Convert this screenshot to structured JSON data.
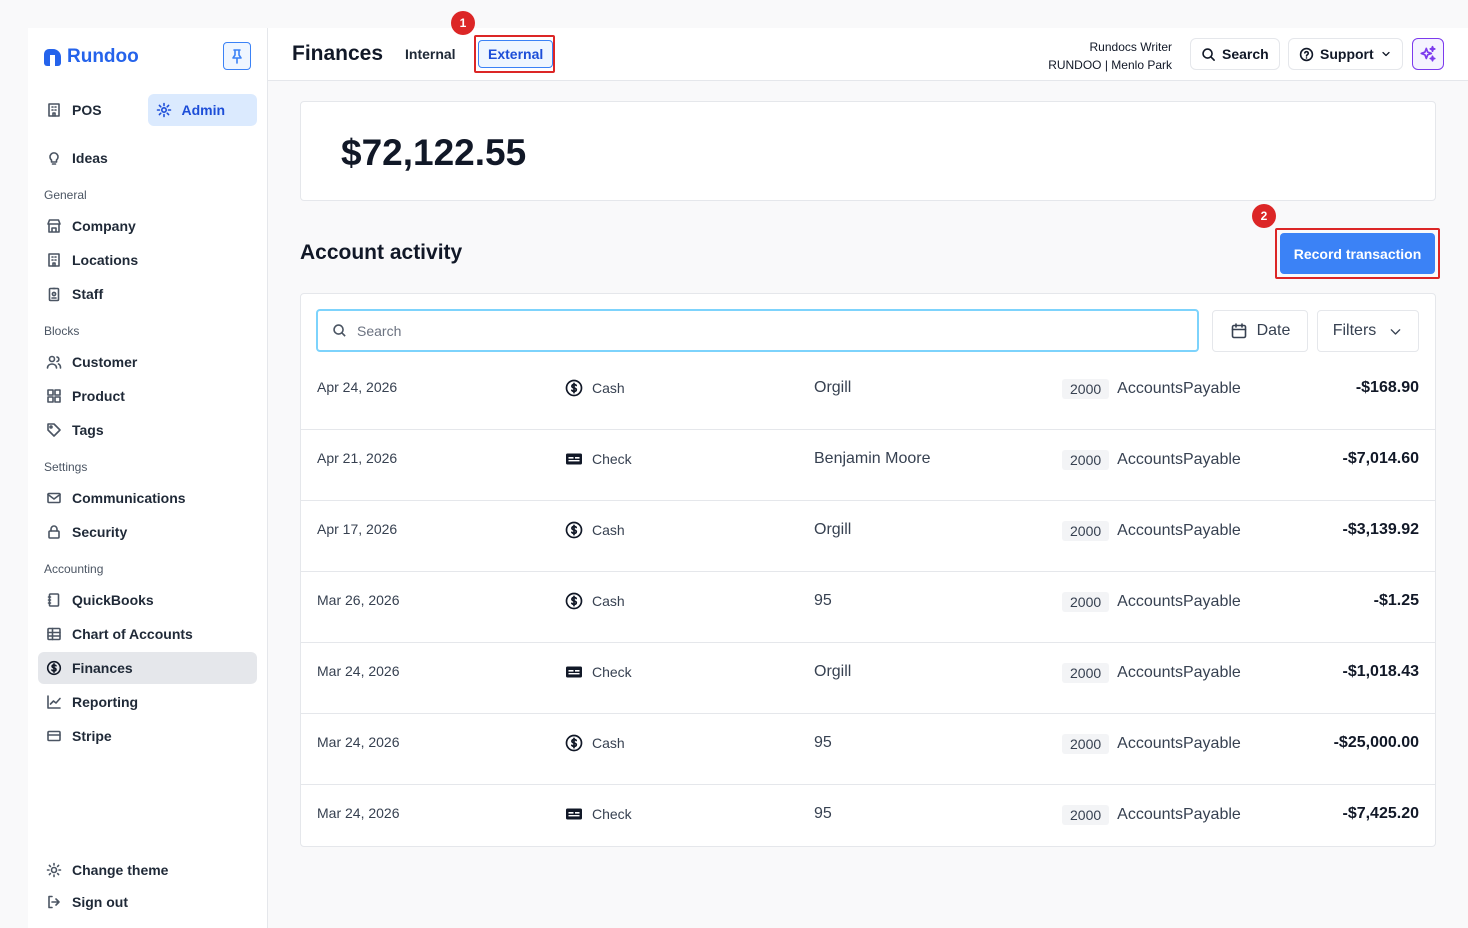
{
  "app": {
    "name": "Rundoo"
  },
  "sidebar": {
    "modes": [
      {
        "label": "POS"
      },
      {
        "label": "Admin"
      }
    ],
    "ideas": "Ideas",
    "sections": {
      "general": "General",
      "blocks": "Blocks",
      "settings": "Settings",
      "accounting": "Accounting"
    },
    "items": {
      "company": "Company",
      "locations": "Locations",
      "staff": "Staff",
      "customer": "Customer",
      "product": "Product",
      "tags": "Tags",
      "communications": "Communications",
      "security": "Security",
      "quickbooks": "QuickBooks",
      "chart_of_accounts": "Chart of Accounts",
      "finances": "Finances",
      "reporting": "Reporting",
      "stripe": "Stripe"
    },
    "footer": {
      "theme": "Change theme",
      "signout": "Sign out"
    }
  },
  "header": {
    "title": "Finances",
    "tabs": [
      {
        "label": "Internal"
      },
      {
        "label": "External"
      }
    ],
    "user_name": "Rundocs Writer",
    "user_org": "RUNDOO | Menlo Park",
    "search_label": "Search",
    "support_label": "Support"
  },
  "annotations": {
    "one": "1",
    "two": "2"
  },
  "balance": "$72,122.55",
  "activity": {
    "title": "Account activity",
    "record_label": "Record transaction",
    "search_placeholder": "Search",
    "date_label": "Date",
    "filters_label": "Filters"
  },
  "transactions": [
    {
      "date": "Apr 24, 2026",
      "method": "Cash",
      "method_icon": "dollar-circle-icon",
      "vendor": "Orgill",
      "code": "2000",
      "account": "AccountsPayable",
      "amount": "-$168.90"
    },
    {
      "date": "Apr 21, 2026",
      "method": "Check",
      "method_icon": "check-card-icon",
      "vendor": "Benjamin Moore",
      "code": "2000",
      "account": "AccountsPayable",
      "amount": "-$7,014.60"
    },
    {
      "date": "Apr 17, 2026",
      "method": "Cash",
      "method_icon": "dollar-circle-icon",
      "vendor": "Orgill",
      "code": "2000",
      "account": "AccountsPayable",
      "amount": "-$3,139.92"
    },
    {
      "date": "Mar 26, 2026",
      "method": "Cash",
      "method_icon": "dollar-circle-icon",
      "vendor": "95",
      "code": "2000",
      "account": "AccountsPayable",
      "amount": "-$1.25"
    },
    {
      "date": "Mar 24, 2026",
      "method": "Check",
      "method_icon": "check-card-icon",
      "vendor": "Orgill",
      "code": "2000",
      "account": "AccountsPayable",
      "amount": "-$1,018.43"
    },
    {
      "date": "Mar 24, 2026",
      "method": "Cash",
      "method_icon": "dollar-circle-icon",
      "vendor": "95",
      "code": "2000",
      "account": "AccountsPayable",
      "amount": "-$25,000.00"
    },
    {
      "date": "Mar 24, 2026",
      "method": "Check",
      "method_icon": "check-card-icon",
      "vendor": "95",
      "code": "2000",
      "account": "AccountsPayable",
      "amount": "-$7,425.20"
    }
  ],
  "colors": {
    "accent": "#3b82f6",
    "annotation": "#dc2626",
    "brand": "#2563eb"
  }
}
